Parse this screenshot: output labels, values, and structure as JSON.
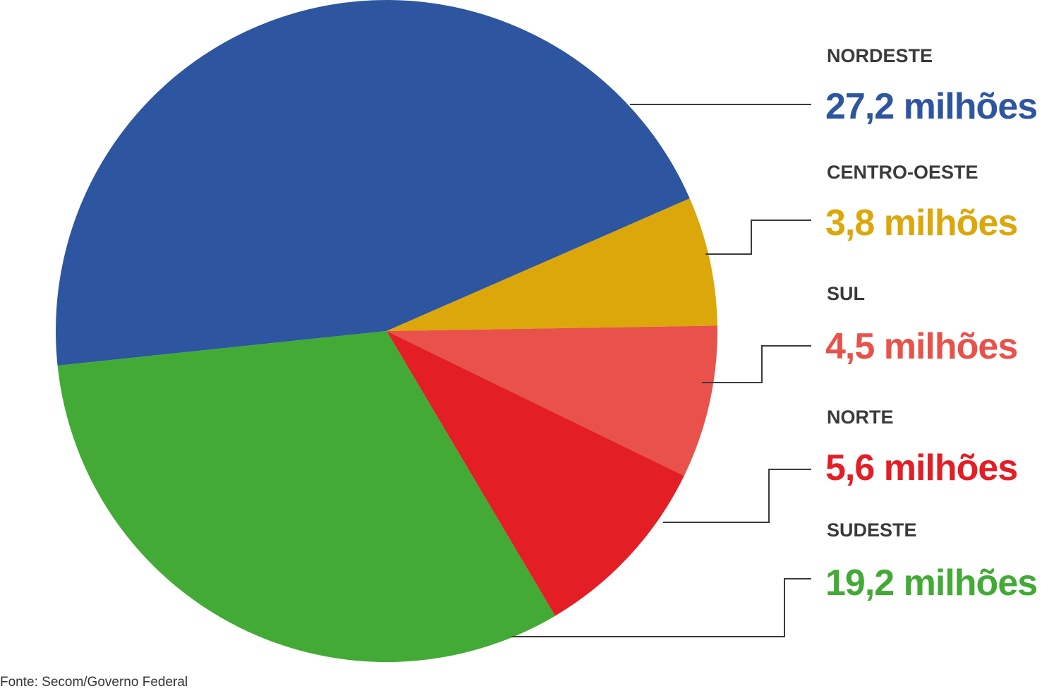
{
  "chart_data": {
    "type": "pie",
    "categories": [
      "NORDESTE",
      "CENTRO-OESTE",
      "SUL",
      "NORTE",
      "SUDESTE"
    ],
    "values": [
      27.2,
      3.8,
      4.5,
      5.6,
      19.2
    ],
    "value_labels": [
      "27,2 milhões",
      "3,8 milhões",
      "4,5 milhões",
      "5,6 milhões",
      "19,2 milhões"
    ],
    "colors": [
      "#2d55a0",
      "#dca70a",
      "#e9524a",
      "#e31e24",
      "#43aa36"
    ],
    "source": "Fonte: Secom/Governo Federal"
  }
}
